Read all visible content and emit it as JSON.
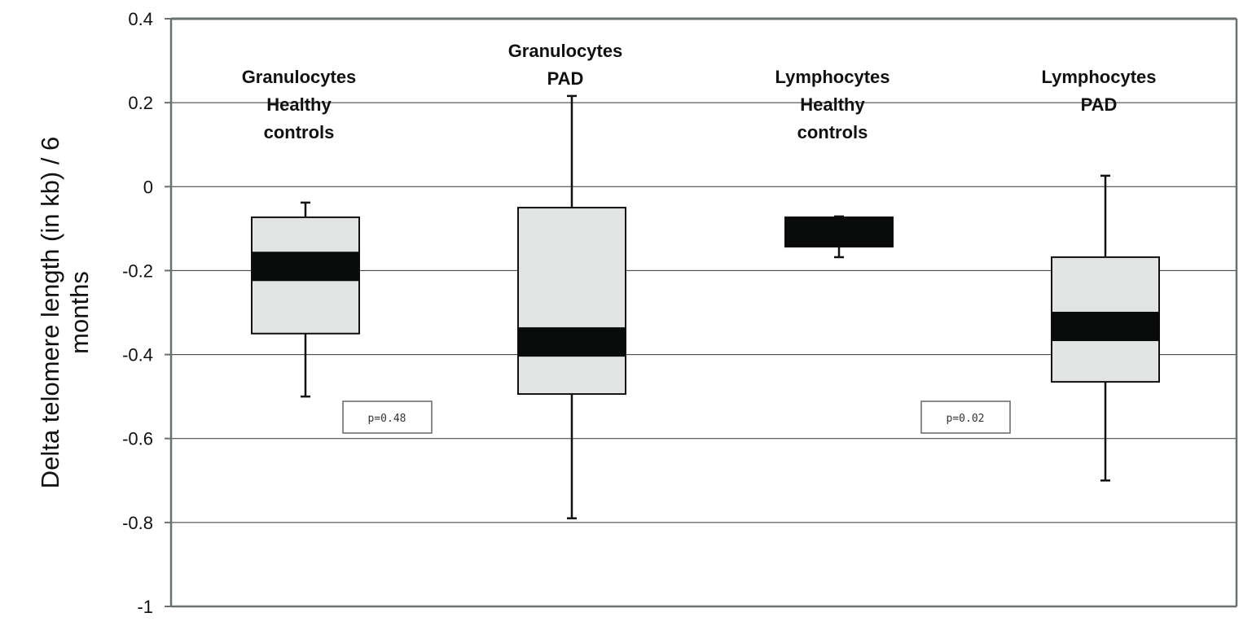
{
  "chart_data": {
    "type": "boxplot",
    "title": "",
    "xlabel": "",
    "ylabel_lines": [
      "Delta telomere length (in kb) / 6",
      "months"
    ],
    "ylim": [
      -1,
      0.4
    ],
    "yticks": [
      0.4,
      0.2,
      0,
      -0.2,
      -0.4,
      -0.6,
      -0.8,
      -1
    ],
    "ytick_labels": [
      "0.4",
      "0.2",
      "0",
      "-0.2",
      "-0.4",
      "-0.6",
      "-0.8",
      "-1"
    ],
    "grid": true,
    "colors": {
      "box": "#e1e4e3",
      "median": "#0a0c0c",
      "grid": "#333333",
      "axis": "#6b7070"
    },
    "series": [
      {
        "label_lines": [
          "Granulocytes",
          "Healthy",
          "controls"
        ],
        "whisker_low": -0.5,
        "q1": -0.35,
        "median": -0.19,
        "q3": -0.073,
        "whisker_high": -0.038
      },
      {
        "label_lines": [
          "Granulocytes",
          "PAD"
        ],
        "whisker_low": -0.79,
        "q1": -0.494,
        "median": -0.37,
        "q3": -0.05,
        "whisker_high": 0.216
      },
      {
        "label_lines": [
          "Lymphocytes",
          "Healthy",
          "controls"
        ],
        "whisker_low": -0.168,
        "q1": -0.143,
        "median": -0.108,
        "q3": -0.073,
        "whisker_high": -0.071
      },
      {
        "label_lines": [
          "Lymphocytes",
          "PAD"
        ],
        "whisker_low": -0.7,
        "q1": -0.465,
        "median": -0.333,
        "q3": -0.168,
        "whisker_high": 0.026
      }
    ],
    "annotations": [
      "p=0.48",
      "p=0.02"
    ]
  }
}
